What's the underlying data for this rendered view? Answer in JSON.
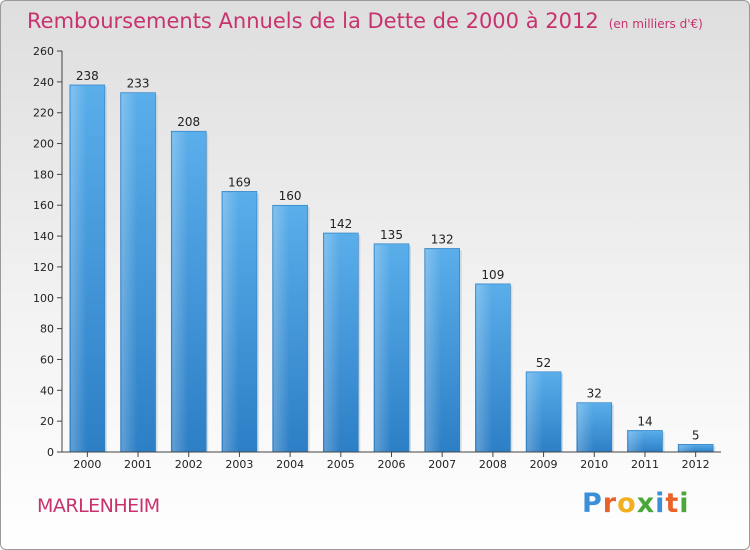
{
  "chart_data": {
    "type": "bar",
    "title": "Remboursements Annuels de la Dette de 2000 à 2012",
    "unit": "(en milliers d'€)",
    "categories": [
      "2000",
      "2001",
      "2002",
      "2003",
      "2004",
      "2005",
      "2006",
      "2007",
      "2008",
      "2009",
      "2010",
      "2011",
      "2012"
    ],
    "values": [
      238,
      233,
      208,
      169,
      160,
      142,
      135,
      132,
      109,
      52,
      32,
      14,
      5
    ],
    "xlabel": "",
    "ylabel": "",
    "ylim": [
      0,
      260
    ],
    "yticks": [
      0,
      20,
      40,
      60,
      80,
      100,
      120,
      140,
      160,
      180,
      200,
      220,
      240,
      260
    ],
    "grid": false,
    "bar_color": "#4f9fde"
  },
  "footer": {
    "commune": "MARLENHEIM"
  },
  "logo": {
    "letters": [
      {
        "char": "P",
        "color": "#3a8fd8"
      },
      {
        "char": "r",
        "color": "#e8622a"
      },
      {
        "char": "o",
        "color": "#f2b01e"
      },
      {
        "char": "x",
        "color": "#4aa83a"
      },
      {
        "char": "i",
        "color": "#3a8fd8"
      },
      {
        "char": "t",
        "color": "#e8622a"
      },
      {
        "char": "i",
        "color": "#4aa83a"
      }
    ]
  }
}
